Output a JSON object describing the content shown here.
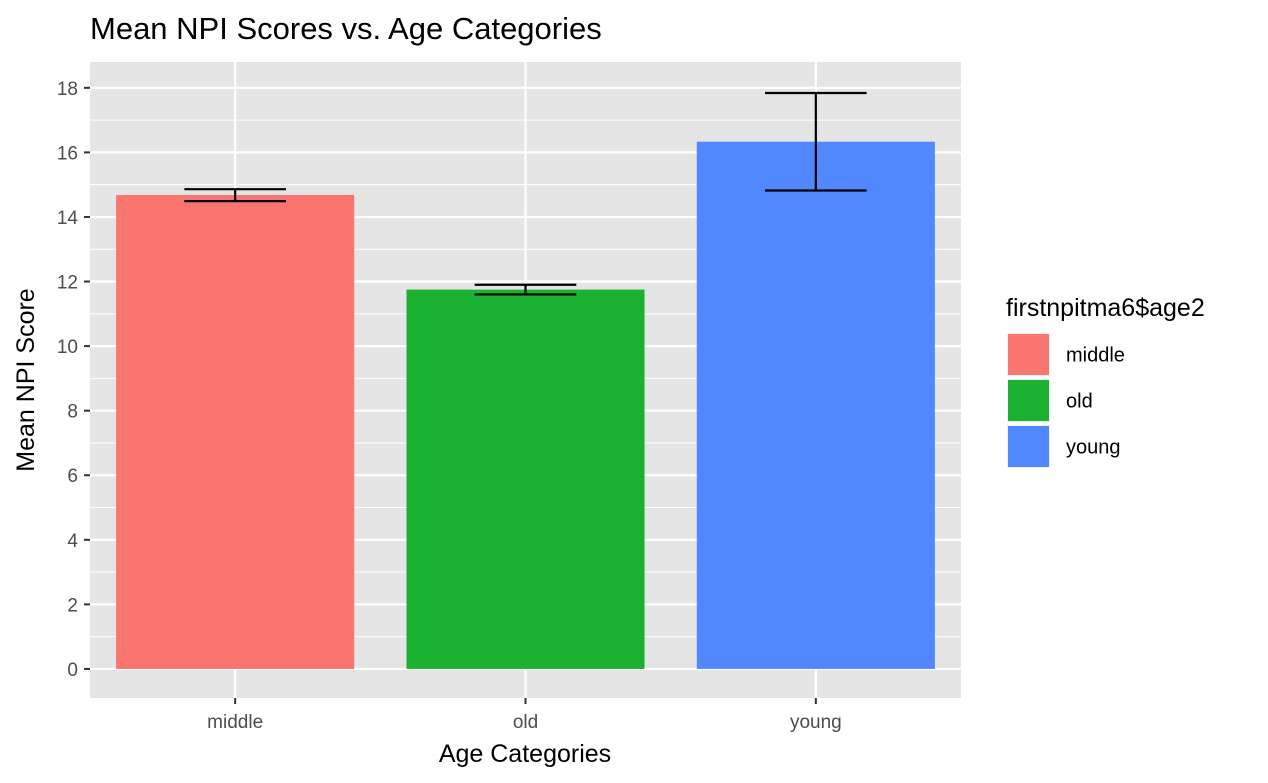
{
  "chart_data": {
    "type": "bar",
    "title": "Mean NPI Scores vs. Age Categories",
    "xlabel": "Age Categories",
    "ylabel": "Mean NPI Score",
    "categories": [
      "middle",
      "old",
      "young"
    ],
    "values": [
      14.68,
      11.75,
      16.33
    ],
    "error_bars": [
      {
        "low": 14.49,
        "high": 14.86
      },
      {
        "low": 11.6,
        "high": 11.9
      },
      {
        "low": 14.82,
        "high": 17.84
      }
    ],
    "colors": [
      "#F8766D",
      "#1BB232",
      "#5187FF"
    ],
    "ylim": [
      -0.9,
      18.8
    ],
    "yticks": [
      "0",
      "2",
      "4",
      "6",
      "8",
      "10",
      "12",
      "14",
      "16",
      "18"
    ],
    "grid": true,
    "legend": {
      "title": "firstnpitma6$age2",
      "placement": "right",
      "entries": [
        "middle",
        "old",
        "young"
      ]
    },
    "background": "#E5E5E5",
    "gridline_color": "#FFFFFF"
  }
}
